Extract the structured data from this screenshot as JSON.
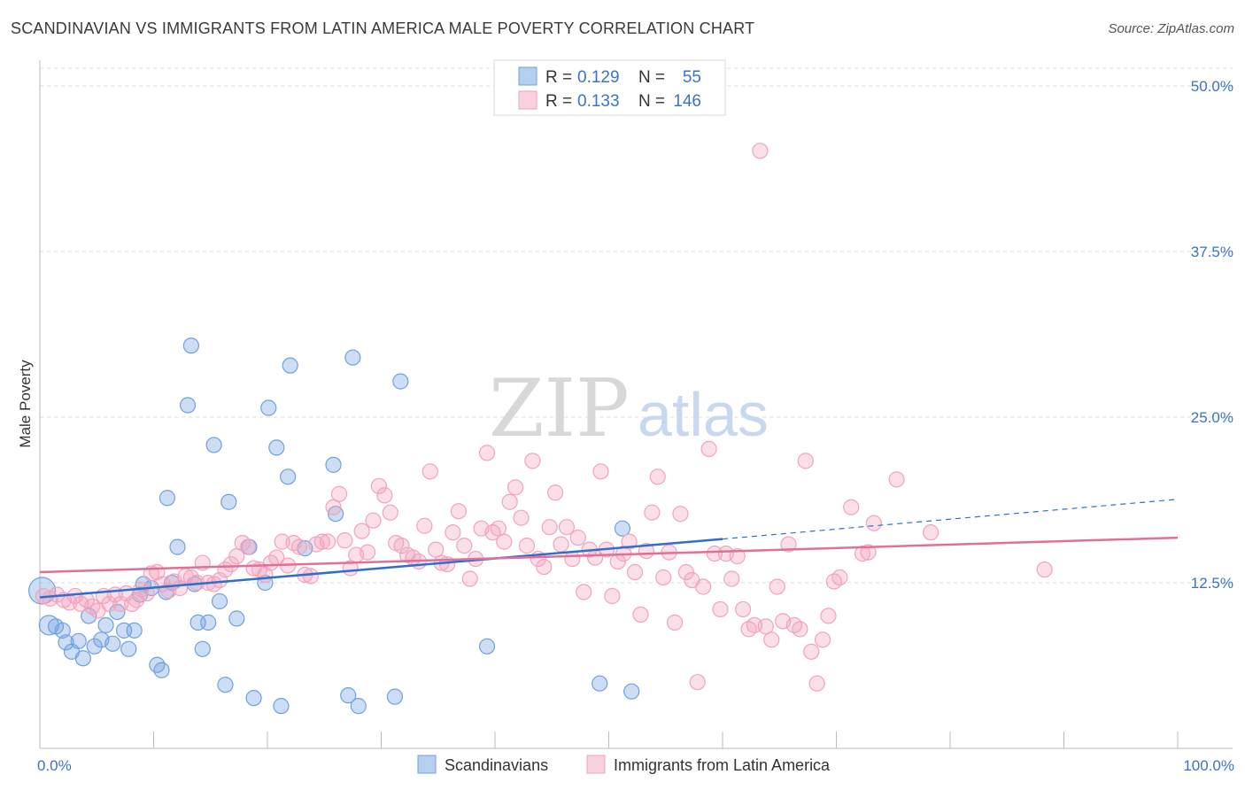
{
  "title": "SCANDINAVIAN VS IMMIGRANTS FROM LATIN AMERICA MALE POVERTY CORRELATION CHART",
  "source": "Source: ZipAtlas.com",
  "watermark": {
    "zip": "ZIP",
    "atlas": "atlas"
  },
  "chart_data": {
    "type": "scatter",
    "title": "SCANDINAVIAN VS IMMIGRANTS FROM LATIN AMERICA MALE POVERTY CORRELATION CHART",
    "xlabel": "",
    "ylabel": "Male Poverty",
    "xlim": [
      0,
      100
    ],
    "ylim": [
      0,
      50
    ],
    "x_tick_labels": [
      "0.0%",
      "100.0%"
    ],
    "y_ticks": [
      12.5,
      25.0,
      37.5,
      50.0
    ],
    "y_tick_labels": [
      "12.5%",
      "25.0%",
      "37.5%",
      "50.0%"
    ],
    "grid": true,
    "legend_placement": "top-center",
    "stats": [
      {
        "r_label": "R =",
        "r": "0.129",
        "n_label": "N =",
        "n": "55"
      },
      {
        "r_label": "R =",
        "r": "0.133",
        "n_label": "N =",
        "n": "146"
      }
    ],
    "series": [
      {
        "name": "Scandinavians",
        "color": "#6fa0e0",
        "line_color": "#2f6fcc",
        "trend": {
          "x0": 0,
          "y0": 11.4,
          "x1": 60,
          "y1": 15.8,
          "dash_to_x": 100,
          "dash_to_y": 18.8
        },
        "points": [
          [
            0.2,
            11.9
          ],
          [
            0.8,
            9.3
          ],
          [
            1.4,
            9.2
          ],
          [
            2.0,
            8.9
          ],
          [
            2.3,
            8.0
          ],
          [
            2.8,
            7.3
          ],
          [
            3.4,
            8.1
          ],
          [
            3.8,
            6.8
          ],
          [
            4.3,
            10.0
          ],
          [
            4.8,
            7.7
          ],
          [
            5.4,
            8.2
          ],
          [
            5.8,
            9.3
          ],
          [
            6.4,
            7.9
          ],
          [
            6.8,
            10.3
          ],
          [
            7.4,
            8.9
          ],
          [
            7.8,
            7.5
          ],
          [
            8.3,
            8.9
          ],
          [
            8.8,
            11.6
          ],
          [
            9.1,
            12.4
          ],
          [
            9.8,
            12.1
          ],
          [
            10.3,
            6.3
          ],
          [
            10.7,
            5.9
          ],
          [
            11.1,
            11.8
          ],
          [
            11.6,
            12.5
          ],
          [
            11.2,
            18.9
          ],
          [
            12.1,
            15.2
          ],
          [
            13.0,
            25.9
          ],
          [
            13.3,
            30.4
          ],
          [
            13.6,
            12.4
          ],
          [
            13.9,
            9.5
          ],
          [
            14.3,
            7.5
          ],
          [
            14.8,
            9.5
          ],
          [
            15.3,
            22.9
          ],
          [
            15.8,
            11.1
          ],
          [
            16.3,
            4.8
          ],
          [
            16.6,
            18.6
          ],
          [
            17.3,
            9.8
          ],
          [
            18.4,
            15.2
          ],
          [
            18.8,
            3.8
          ],
          [
            19.8,
            12.5
          ],
          [
            20.1,
            25.7
          ],
          [
            20.8,
            22.7
          ],
          [
            21.2,
            3.2
          ],
          [
            21.8,
            20.5
          ],
          [
            22.0,
            28.9
          ],
          [
            23.3,
            15.1
          ],
          [
            25.8,
            21.4
          ],
          [
            26.0,
            17.7
          ],
          [
            27.1,
            4.0
          ],
          [
            27.5,
            29.5
          ],
          [
            28.0,
            3.2
          ],
          [
            31.7,
            27.7
          ],
          [
            31.2,
            3.9
          ],
          [
            39.3,
            7.7
          ],
          [
            49.2,
            4.9
          ],
          [
            51.2,
            16.6
          ],
          [
            52.0,
            4.3
          ]
        ]
      },
      {
        "name": "Immigrants from Latin America",
        "color": "#f2a3bd",
        "line_color": "#e06f99",
        "trend": {
          "x0": 0,
          "y0": 13.3,
          "x1": 100,
          "y1": 15.9
        },
        "points": [
          [
            0.3,
            11.5
          ],
          [
            0.9,
            11.3
          ],
          [
            1.5,
            11.6
          ],
          [
            2.1,
            11.2
          ],
          [
            2.6,
            11.0
          ],
          [
            3.1,
            11.5
          ],
          [
            3.6,
            10.9
          ],
          [
            4.1,
            11.2
          ],
          [
            4.6,
            10.7
          ],
          [
            5.1,
            10.4
          ],
          [
            5.6,
            11.5
          ],
          [
            6.1,
            10.9
          ],
          [
            6.6,
            11.6
          ],
          [
            7.1,
            10.9
          ],
          [
            7.6,
            11.7
          ],
          [
            8.1,
            10.9
          ],
          [
            8.5,
            11.2
          ],
          [
            8.9,
            12.0
          ],
          [
            9.4,
            11.7
          ],
          [
            9.8,
            13.2
          ],
          [
            10.3,
            13.3
          ],
          [
            10.8,
            12.4
          ],
          [
            11.3,
            11.9
          ],
          [
            11.8,
            12.6
          ],
          [
            12.3,
            12.1
          ],
          [
            12.8,
            13.0
          ],
          [
            13.3,
            12.9
          ],
          [
            13.8,
            12.5
          ],
          [
            14.3,
            14.0
          ],
          [
            14.8,
            12.5
          ],
          [
            15.3,
            12.4
          ],
          [
            15.8,
            12.7
          ],
          [
            16.3,
            13.5
          ],
          [
            16.8,
            13.9
          ],
          [
            17.3,
            14.5
          ],
          [
            17.8,
            15.5
          ],
          [
            18.3,
            15.2
          ],
          [
            18.8,
            13.6
          ],
          [
            19.3,
            13.5
          ],
          [
            19.8,
            13.1
          ],
          [
            20.3,
            14.0
          ],
          [
            20.8,
            14.4
          ],
          [
            21.3,
            15.6
          ],
          [
            21.8,
            13.8
          ],
          [
            22.3,
            15.5
          ],
          [
            22.8,
            15.2
          ],
          [
            23.3,
            13.1
          ],
          [
            23.8,
            13.0
          ],
          [
            24.3,
            15.4
          ],
          [
            24.8,
            15.6
          ],
          [
            25.3,
            15.6
          ],
          [
            25.8,
            18.2
          ],
          [
            26.3,
            19.2
          ],
          [
            26.8,
            15.7
          ],
          [
            27.3,
            13.6
          ],
          [
            27.8,
            14.6
          ],
          [
            28.3,
            16.4
          ],
          [
            28.8,
            14.8
          ],
          [
            29.3,
            17.2
          ],
          [
            29.8,
            19.8
          ],
          [
            30.3,
            19.1
          ],
          [
            30.8,
            17.8
          ],
          [
            31.3,
            15.5
          ],
          [
            31.8,
            15.3
          ],
          [
            32.3,
            14.6
          ],
          [
            32.8,
            14.4
          ],
          [
            33.3,
            14.1
          ],
          [
            33.8,
            16.8
          ],
          [
            34.3,
            20.9
          ],
          [
            34.8,
            15.0
          ],
          [
            35.3,
            14.0
          ],
          [
            35.8,
            13.9
          ],
          [
            36.3,
            16.3
          ],
          [
            36.8,
            17.9
          ],
          [
            37.3,
            15.3
          ],
          [
            37.8,
            12.8
          ],
          [
            38.3,
            14.3
          ],
          [
            38.8,
            16.6
          ],
          [
            39.3,
            22.3
          ],
          [
            39.8,
            16.3
          ],
          [
            40.3,
            16.6
          ],
          [
            40.8,
            15.6
          ],
          [
            41.3,
            18.6
          ],
          [
            41.8,
            19.7
          ],
          [
            42.3,
            17.4
          ],
          [
            42.8,
            15.3
          ],
          [
            43.3,
            21.7
          ],
          [
            43.8,
            14.3
          ],
          [
            44.3,
            13.7
          ],
          [
            44.8,
            16.7
          ],
          [
            45.3,
            19.3
          ],
          [
            45.8,
            15.4
          ],
          [
            46.3,
            16.7
          ],
          [
            46.8,
            14.3
          ],
          [
            47.3,
            15.9
          ],
          [
            47.8,
            11.8
          ],
          [
            48.3,
            15.0
          ],
          [
            48.8,
            14.4
          ],
          [
            49.3,
            20.9
          ],
          [
            49.8,
            15.0
          ],
          [
            50.3,
            11.5
          ],
          [
            50.8,
            14.1
          ],
          [
            51.3,
            14.7
          ],
          [
            51.8,
            15.6
          ],
          [
            52.3,
            13.3
          ],
          [
            52.8,
            10.1
          ],
          [
            53.3,
            14.9
          ],
          [
            53.8,
            17.8
          ],
          [
            54.3,
            20.5
          ],
          [
            54.8,
            12.9
          ],
          [
            55.3,
            14.8
          ],
          [
            55.8,
            9.5
          ],
          [
            56.3,
            17.7
          ],
          [
            56.8,
            13.3
          ],
          [
            57.3,
            12.7
          ],
          [
            57.8,
            5.0
          ],
          [
            58.3,
            12.2
          ],
          [
            58.8,
            22.6
          ],
          [
            59.3,
            14.7
          ],
          [
            59.8,
            10.5
          ],
          [
            60.3,
            14.7
          ],
          [
            60.8,
            12.8
          ],
          [
            61.3,
            14.5
          ],
          [
            61.8,
            10.5
          ],
          [
            62.3,
            9.0
          ],
          [
            62.8,
            9.3
          ],
          [
            63.3,
            45.1
          ],
          [
            63.8,
            9.2
          ],
          [
            64.3,
            8.2
          ],
          [
            64.8,
            12.2
          ],
          [
            65.3,
            9.6
          ],
          [
            65.8,
            15.4
          ],
          [
            66.3,
            9.3
          ],
          [
            66.8,
            9.0
          ],
          [
            67.3,
            21.7
          ],
          [
            67.8,
            7.3
          ],
          [
            68.3,
            4.9
          ],
          [
            68.8,
            8.2
          ],
          [
            69.3,
            10.0
          ],
          [
            69.8,
            12.6
          ],
          [
            70.3,
            12.9
          ],
          [
            71.3,
            18.2
          ],
          [
            72.3,
            14.7
          ],
          [
            72.8,
            14.8
          ],
          [
            73.3,
            17.0
          ],
          [
            75.3,
            20.3
          ],
          [
            78.3,
            16.3
          ],
          [
            88.3,
            13.5
          ]
        ]
      }
    ]
  }
}
